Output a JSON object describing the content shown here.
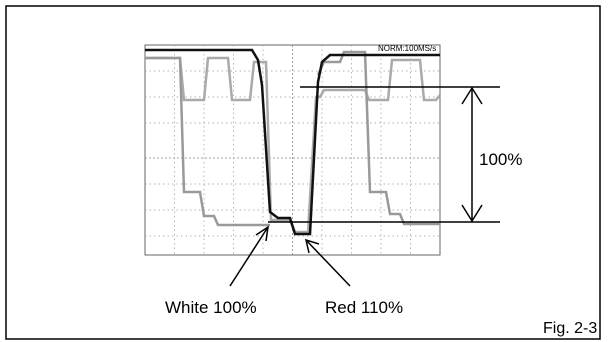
{
  "scope": {
    "status": "NORM:100MS/s"
  },
  "scale_label": "100%",
  "annotations": [
    "White 100%",
    "Red 110%"
  ],
  "figure_label": "Fig. 2-3"
}
